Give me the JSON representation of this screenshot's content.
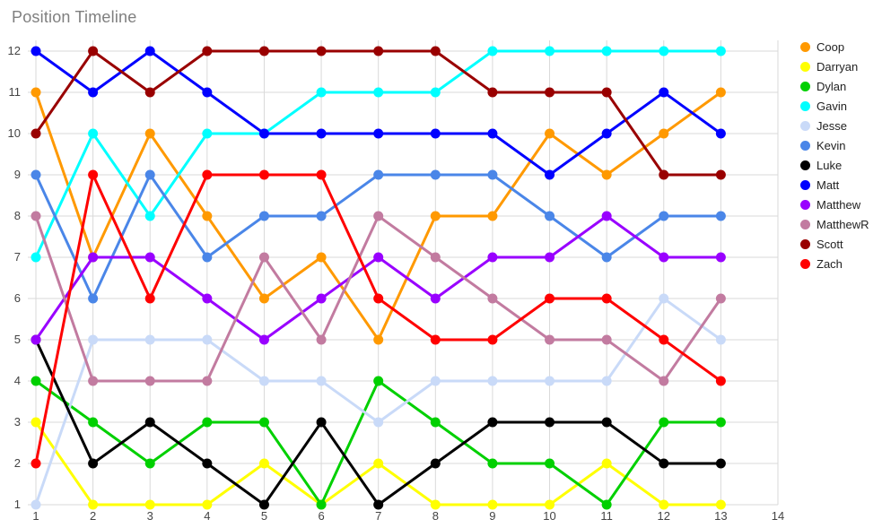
{
  "chart_data": {
    "type": "line",
    "title": "Position Timeline",
    "xlabel": "",
    "ylabel": "",
    "x": [
      1,
      2,
      3,
      4,
      5,
      6,
      7,
      8,
      9,
      10,
      11,
      12,
      13
    ],
    "x_ticks": [
      1,
      2,
      3,
      4,
      5,
      6,
      7,
      8,
      9,
      10,
      11,
      12,
      13,
      14
    ],
    "y_ticks": [
      1,
      2,
      3,
      4,
      5,
      6,
      7,
      8,
      9,
      10,
      11,
      12
    ],
    "xlim": [
      1,
      14
    ],
    "ylim": [
      1,
      12
    ],
    "grid": true,
    "legend_position": "right",
    "grid_color": "#d9d9d9",
    "series": [
      {
        "name": "Coop",
        "color": "#ff9900",
        "values": [
          11,
          7,
          10,
          8,
          6,
          7,
          5,
          8,
          8,
          10,
          9,
          10,
          11
        ]
      },
      {
        "name": "Darryan",
        "color": "#ffff00",
        "values": [
          3,
          1,
          1,
          1,
          2,
          1,
          2,
          1,
          1,
          1,
          2,
          1,
          1
        ]
      },
      {
        "name": "Dylan",
        "color": "#00d000",
        "values": [
          4,
          3,
          2,
          3,
          3,
          1,
          4,
          3,
          2,
          2,
          1,
          3,
          3
        ]
      },
      {
        "name": "Gavin",
        "color": "#00ffff",
        "values": [
          7,
          10,
          8,
          10,
          10,
          11,
          11,
          11,
          12,
          12,
          12,
          12,
          12
        ]
      },
      {
        "name": "Jesse",
        "color": "#c9daf8",
        "values": [
          1,
          5,
          5,
          5,
          4,
          4,
          3,
          4,
          4,
          4,
          4,
          6,
          5
        ]
      },
      {
        "name": "Kevin",
        "color": "#4a86e8",
        "values": [
          9,
          6,
          9,
          7,
          8,
          8,
          9,
          9,
          9,
          8,
          7,
          8,
          8
        ]
      },
      {
        "name": "Luke",
        "color": "#000000",
        "values": [
          5,
          2,
          3,
          2,
          1,
          3,
          1,
          2,
          3,
          3,
          3,
          2,
          2
        ]
      },
      {
        "name": "Matt",
        "color": "#0000ff",
        "values": [
          12,
          11,
          12,
          11,
          10,
          10,
          10,
          10,
          10,
          9,
          10,
          11,
          10
        ]
      },
      {
        "name": "Matthew",
        "color": "#9900ff",
        "values": [
          5,
          7,
          7,
          6,
          5,
          6,
          7,
          6,
          7,
          7,
          8,
          7,
          7
        ]
      },
      {
        "name": "MatthewR",
        "color": "#c27ba0",
        "values": [
          8,
          4,
          4,
          4,
          7,
          5,
          8,
          7,
          6,
          5,
          5,
          4,
          6
        ]
      },
      {
        "name": "Scott",
        "color": "#990000",
        "values": [
          10,
          12,
          11,
          12,
          12,
          12,
          12,
          12,
          11,
          11,
          11,
          9,
          9
        ]
      },
      {
        "name": "Zach",
        "color": "#ff0000",
        "values": [
          2,
          9,
          6,
          9,
          9,
          9,
          6,
          5,
          5,
          6,
          6,
          5,
          4
        ]
      }
    ]
  }
}
